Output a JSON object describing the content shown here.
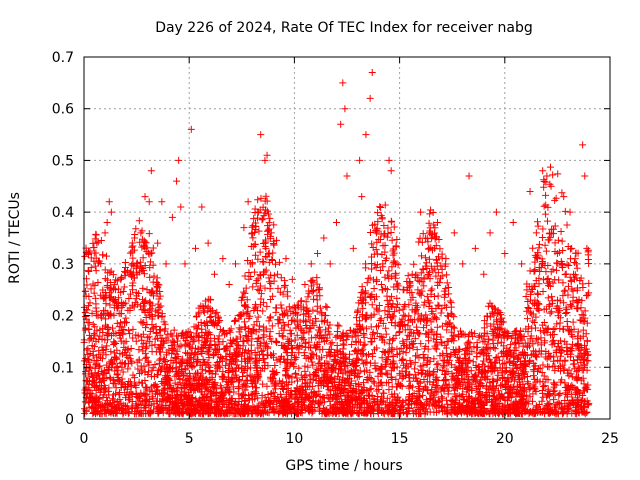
{
  "chart_data": {
    "type": "scatter",
    "title": "Day 226 of 2024, Rate Of TEC Index for receiver nabg",
    "xlabel": "GPS time / hours",
    "ylabel": "ROTI / TECUs",
    "xlim": [
      0,
      25
    ],
    "ylim": [
      0,
      0.7
    ],
    "xticks": [
      "0",
      "5",
      "10",
      "15",
      "20",
      "25"
    ],
    "yticks": [
      "0",
      "0.1",
      "0.2",
      "0.3",
      "0.4",
      "0.5",
      "0.6",
      "0.7"
    ],
    "xtick_values": [
      0,
      5,
      10,
      15,
      20,
      25
    ],
    "ytick_values": [
      0,
      0.1,
      0.2,
      0.3,
      0.4,
      0.5,
      0.6,
      0.7
    ],
    "grid": true,
    "marker": "+",
    "color": "#ff0000",
    "x_range_data": [
      0,
      24
    ],
    "points": [
      [
        0.3,
        0.05
      ],
      [
        0.5,
        0.14
      ],
      [
        0.6,
        0.12
      ],
      [
        0.8,
        0.2
      ],
      [
        1.0,
        0.36
      ],
      [
        1.1,
        0.38
      ],
      [
        1.2,
        0.42
      ],
      [
        1.3,
        0.4
      ],
      [
        1.5,
        0.25
      ],
      [
        1.8,
        0.1
      ],
      [
        2.0,
        0.15
      ],
      [
        2.3,
        0.22
      ],
      [
        2.5,
        0.3
      ],
      [
        2.7,
        0.36
      ],
      [
        2.9,
        0.43
      ],
      [
        3.1,
        0.42
      ],
      [
        3.2,
        0.48
      ],
      [
        3.5,
        0.34
      ],
      [
        3.7,
        0.42
      ],
      [
        3.9,
        0.3
      ],
      [
        4.2,
        0.39
      ],
      [
        4.4,
        0.46
      ],
      [
        4.5,
        0.5
      ],
      [
        4.6,
        0.41
      ],
      [
        4.8,
        0.3
      ],
      [
        5.1,
        0.56
      ],
      [
        5.3,
        0.33
      ],
      [
        5.6,
        0.41
      ],
      [
        5.9,
        0.34
      ],
      [
        6.2,
        0.28
      ],
      [
        6.6,
        0.31
      ],
      [
        6.9,
        0.26
      ],
      [
        7.2,
        0.3
      ],
      [
        7.6,
        0.37
      ],
      [
        7.8,
        0.42
      ],
      [
        8.0,
        0.3
      ],
      [
        8.4,
        0.55
      ],
      [
        8.6,
        0.5
      ],
      [
        8.7,
        0.51
      ],
      [
        8.9,
        0.36
      ],
      [
        9.2,
        0.28
      ],
      [
        9.6,
        0.31
      ],
      [
        9.9,
        0.27
      ],
      [
        10.2,
        0.22
      ],
      [
        10.5,
        0.26
      ],
      [
        10.8,
        0.3
      ],
      [
        11.1,
        0.32
      ],
      [
        11.4,
        0.35
      ],
      [
        11.7,
        0.3
      ],
      [
        12.0,
        0.38
      ],
      [
        12.2,
        0.57
      ],
      [
        12.3,
        0.65
      ],
      [
        12.4,
        0.6
      ],
      [
        12.5,
        0.47
      ],
      [
        12.8,
        0.33
      ],
      [
        13.1,
        0.5
      ],
      [
        13.2,
        0.43
      ],
      [
        13.4,
        0.55
      ],
      [
        13.6,
        0.62
      ],
      [
        13.7,
        0.67
      ],
      [
        13.9,
        0.36
      ],
      [
        14.2,
        0.3
      ],
      [
        14.5,
        0.5
      ],
      [
        14.6,
        0.48
      ],
      [
        14.8,
        0.3
      ],
      [
        15.2,
        0.25
      ],
      [
        15.6,
        0.28
      ],
      [
        16.0,
        0.4
      ],
      [
        16.4,
        0.33
      ],
      [
        16.8,
        0.38
      ],
      [
        17.2,
        0.31
      ],
      [
        17.6,
        0.36
      ],
      [
        18.0,
        0.3
      ],
      [
        18.3,
        0.47
      ],
      [
        18.6,
        0.33
      ],
      [
        19.0,
        0.28
      ],
      [
        19.3,
        0.36
      ],
      [
        19.6,
        0.4
      ],
      [
        20.0,
        0.32
      ],
      [
        20.4,
        0.38
      ],
      [
        20.8,
        0.3
      ],
      [
        21.2,
        0.44
      ],
      [
        21.5,
        0.36
      ],
      [
        21.8,
        0.48
      ],
      [
        22.0,
        0.47
      ],
      [
        22.2,
        0.45
      ],
      [
        22.5,
        0.32
      ],
      [
        22.8,
        0.43
      ],
      [
        23.1,
        0.4
      ],
      [
        23.4,
        0.3
      ],
      [
        23.7,
        0.53
      ],
      [
        23.8,
        0.47
      ],
      [
        23.9,
        0.33
      ]
    ],
    "points_note_free": true
  }
}
